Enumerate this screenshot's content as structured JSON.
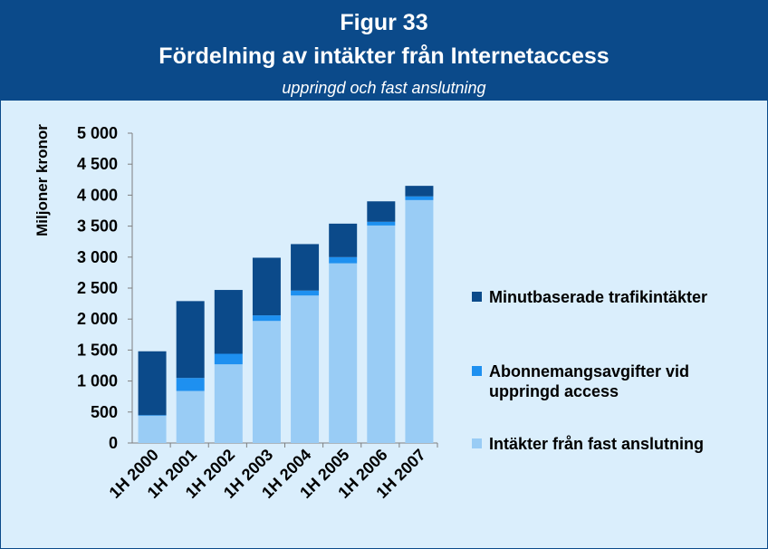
{
  "header": {
    "figure_label": "Figur 33",
    "title": "Fördelning av intäkter från Internetaccess",
    "subtitle": "uppringd och fast anslutning"
  },
  "colors": {
    "background": "#daeefc",
    "header_bg": "#0b4a8a",
    "minutbaserade": "#0b4a8a",
    "abonnemang": "#1e90f0",
    "fast": "#99ccf5"
  },
  "chart_data": {
    "type": "bar",
    "stacked": true,
    "ylabel": "Miljoner kronor",
    "ylim": [
      0,
      5000
    ],
    "yticks": [
      0,
      500,
      1000,
      1500,
      2000,
      2500,
      3000,
      3500,
      4000,
      4500,
      5000
    ],
    "ytick_labels": [
      "0",
      "500",
      "1 000",
      "1 500",
      "2 000",
      "2 500",
      "3 000",
      "3 500",
      "4 000",
      "4 500",
      "5 000"
    ],
    "categories": [
      "1H 2000",
      "1H 2001",
      "1H 2002",
      "1H 2003",
      "1H 2004",
      "1H 2005",
      "1H 2006",
      "1H 2007"
    ],
    "series": [
      {
        "name": "Intäkter från fast anslutning",
        "color": "#99ccf5",
        "values": [
          440,
          840,
          1270,
          1970,
          2380,
          2900,
          3510,
          3920
        ]
      },
      {
        "name": "Abonnemangsavgifter vid uppringd access",
        "color": "#1e90f0",
        "values": [
          10,
          210,
          170,
          90,
          80,
          100,
          60,
          60
        ]
      },
      {
        "name": "Minutbaserade trafikintäkter",
        "color": "#0b4a8a",
        "values": [
          1030,
          1240,
          1030,
          930,
          750,
          540,
          330,
          170
        ]
      }
    ],
    "legend": {
      "placement": "right",
      "entries": [
        {
          "lines": [
            "Minutbaserade trafikintäkter"
          ],
          "color": "#0b4a8a"
        },
        {
          "lines": [
            "Abonnemangsavgifter vid",
            "uppringd access"
          ],
          "color": "#1e90f0"
        },
        {
          "lines": [
            "Intäkter från fast anslutning"
          ],
          "color": "#99ccf5"
        }
      ]
    },
    "grid": false
  }
}
